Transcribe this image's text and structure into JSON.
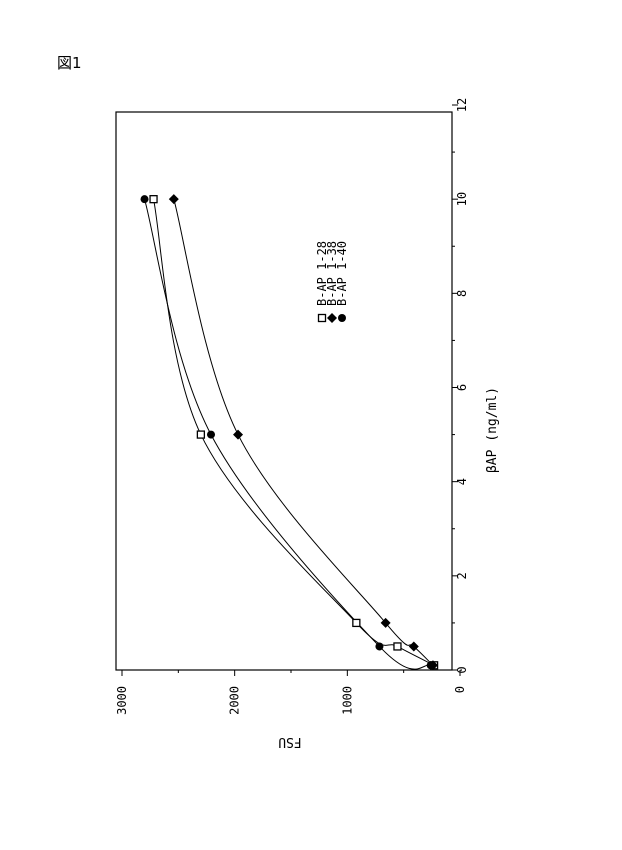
{
  "figure_label": "図1",
  "chart_data": {
    "type": "line",
    "orientation_note": "figure printed rotated 90° clockwise",
    "title": "",
    "xlabel": "βAP (ng/ml)",
    "ylabel": "FSU",
    "xlim": [
      0,
      12
    ],
    "ylim": [
      0,
      3000
    ],
    "x_ticks": [
      "0",
      "2",
      "4",
      "6",
      "8",
      "10",
      "12"
    ],
    "y_ticks": [
      "0",
      "1000",
      "2000",
      "3000"
    ],
    "grid": false,
    "legend_position": "inside, upper right (rotated)",
    "series": [
      {
        "name": "B-AP 1-28",
        "marker": "open-square",
        "x": [
          0.1,
          0.5,
          1,
          5,
          10
        ],
        "y": [
          230,
          555,
          920,
          2300,
          2720
        ]
      },
      {
        "name": "B-AP 1-38",
        "marker": "filled-diamond",
        "x": [
          0.1,
          0.5,
          1,
          5,
          10
        ],
        "y": [
          240,
          410,
          660,
          1970,
          2540
        ]
      },
      {
        "name": "B-AP 1-40",
        "marker": "filled-circle",
        "x": [
          0.1,
          0.5,
          5,
          10
        ],
        "y": [
          260,
          715,
          2210,
          2800
        ]
      }
    ]
  },
  "legend": {
    "items": [
      {
        "label": "B-AP 1-28"
      },
      {
        "label": "B-AP 1-38"
      },
      {
        "label": "B-AP 1-40"
      }
    ]
  },
  "axes": {
    "x_title": "βAP (ng/ml)",
    "y_title": "FSU",
    "x_tick_labels": [
      "0",
      "2",
      "4",
      "6",
      "8",
      "10",
      "12"
    ],
    "y_tick_labels": [
      "0",
      "1000",
      "2000",
      "3000"
    ]
  }
}
